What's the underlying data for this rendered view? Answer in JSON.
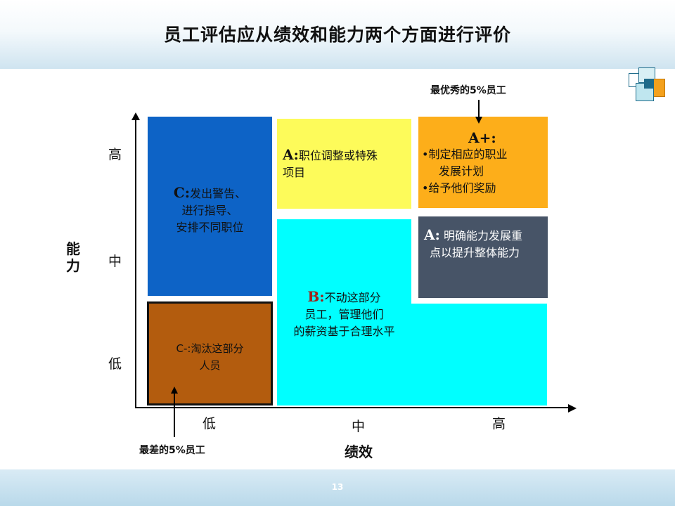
{
  "title": "员工评估应从绩效和能力两个方面进行评价",
  "page_number": "13",
  "axes": {
    "y_label": "能力",
    "y_ticks": [
      "高",
      "中",
      "低"
    ],
    "x_label": "绩效",
    "x_ticks": [
      "低",
      "中",
      "高"
    ]
  },
  "callouts": {
    "top": "最优秀的5%员工",
    "bottom": "最差的5%员工"
  },
  "cells": {
    "c": {
      "lead": "C:",
      "lines": [
        "发出警告、",
        "进行指导、",
        "安排不同职位"
      ],
      "color": "#0d63c6"
    },
    "c_minus": {
      "lines": [
        "C-:淘汰这部分",
        "人员"
      ],
      "color": "#b35c0e"
    },
    "a_yellow": {
      "lead": "A:",
      "lines": [
        "职位调整或特殊",
        "项目"
      ],
      "color": "#fdfb5a"
    },
    "a_plus": {
      "lead": "A+:",
      "lines": [
        "•制定相应的职业",
        "发展计划",
        "•给予他们奖励"
      ],
      "color": "#fdae1a"
    },
    "a_gray": {
      "lead": "A:",
      "lines": [
        "明确能力发展重",
        "点以提升整体能力"
      ],
      "color": "#475467"
    },
    "b": {
      "lead": "B:",
      "lines": [
        "不动这部分",
        "员工，管理他们",
        "的薪资基于合理水平"
      ],
      "color": "#00ffff"
    }
  }
}
